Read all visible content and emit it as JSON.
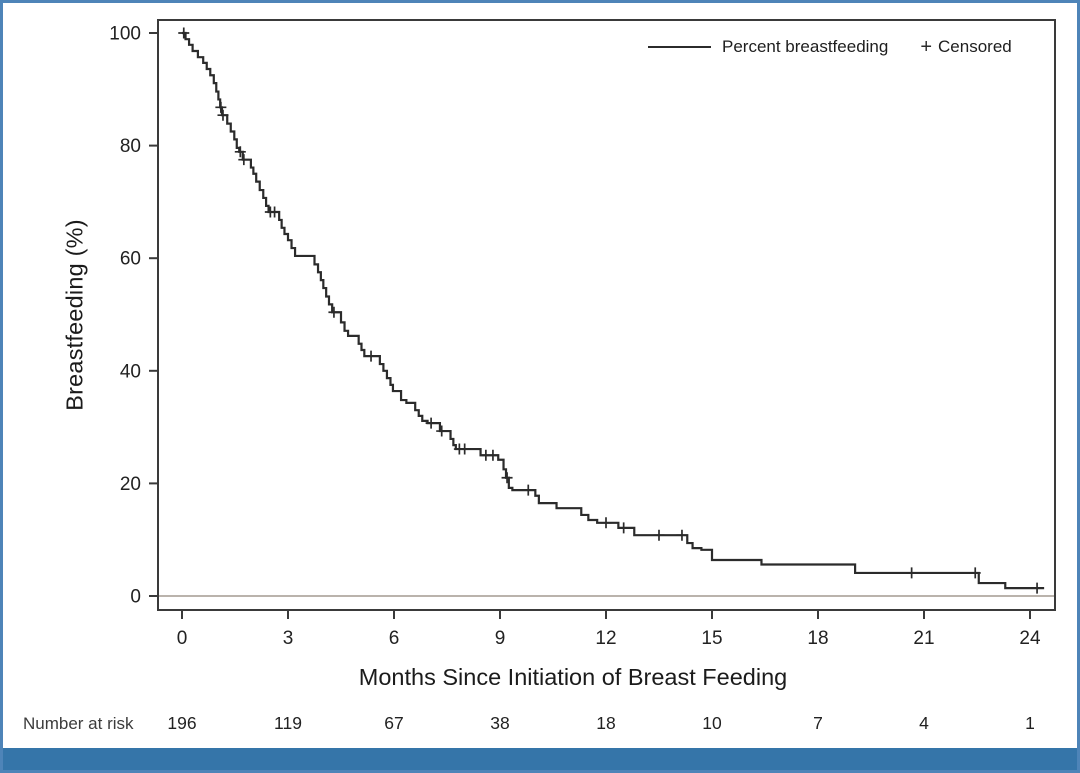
{
  "figure": {
    "kind": "kaplan-meier-survival-plot"
  },
  "colors": {
    "curve": "#2b2b2b",
    "frame": "#3a3a3a",
    "tick_text": "#222222",
    "zero_line": "#a49a90",
    "border_blue": "#4e84b8",
    "band_blue": "#3575a9"
  },
  "chart_data": {
    "type": "line",
    "subtype": "kaplan-meier-step",
    "title": "",
    "xlabel": "Months Since Initiation of Breast Feeding",
    "ylabel": "Breastfeeding (%)",
    "x_range": [
      0,
      24
    ],
    "y_range": [
      0,
      100
    ],
    "x_ticks": [
      0,
      3,
      6,
      9,
      12,
      15,
      18,
      21,
      24
    ],
    "y_ticks": [
      0,
      20,
      40,
      60,
      80,
      100
    ],
    "grid": false,
    "zero_reference_line": true,
    "legend_position": "top-right",
    "legend": {
      "series_label": "Percent breastfeeding",
      "censored_symbol": "+",
      "censored_label": "Censored"
    },
    "end_month": 24.4,
    "series": [
      {
        "name": "Percent breastfeeding",
        "steps": [
          [
            0,
            100
          ],
          [
            0.1,
            98.9
          ],
          [
            0.2,
            97.9
          ],
          [
            0.3,
            96.8
          ],
          [
            0.45,
            95.7
          ],
          [
            0.6,
            94.7
          ],
          [
            0.7,
            93.6
          ],
          [
            0.8,
            92.5
          ],
          [
            0.9,
            91.1
          ],
          [
            0.97,
            89.6
          ],
          [
            1.03,
            88.2
          ],
          [
            1.08,
            86.8
          ],
          [
            1.13,
            85.4
          ],
          [
            1.28,
            83.9
          ],
          [
            1.38,
            82.5
          ],
          [
            1.48,
            81.1
          ],
          [
            1.55,
            79.6
          ],
          [
            1.62,
            78.9
          ],
          [
            1.72,
            77.5
          ],
          [
            1.95,
            76.1
          ],
          [
            2.02,
            75
          ],
          [
            2.1,
            73.6
          ],
          [
            2.2,
            72.1
          ],
          [
            2.3,
            70.7
          ],
          [
            2.38,
            69.3
          ],
          [
            2.45,
            68.2
          ],
          [
            2.75,
            66.8
          ],
          [
            2.82,
            65.4
          ],
          [
            2.9,
            64.3
          ],
          [
            3,
            63.2
          ],
          [
            3.1,
            61.8
          ],
          [
            3.2,
            60.4
          ],
          [
            3.75,
            58.9
          ],
          [
            3.85,
            57.5
          ],
          [
            3.93,
            56.1
          ],
          [
            4,
            54.7
          ],
          [
            4.08,
            53.2
          ],
          [
            4.16,
            51.8
          ],
          [
            4.25,
            50.4
          ],
          [
            4.5,
            48.6
          ],
          [
            4.6,
            47.1
          ],
          [
            4.7,
            46.2
          ],
          [
            5,
            44.8
          ],
          [
            5.08,
            43.7
          ],
          [
            5.16,
            42.6
          ],
          [
            5.6,
            41.2
          ],
          [
            5.7,
            40
          ],
          [
            5.8,
            38.7
          ],
          [
            5.9,
            37.5
          ],
          [
            5.97,
            36.4
          ],
          [
            6.2,
            34.8
          ],
          [
            6.35,
            34.3
          ],
          [
            6.6,
            33
          ],
          [
            6.7,
            32
          ],
          [
            6.8,
            31.1
          ],
          [
            6.95,
            30.7
          ],
          [
            7.3,
            29.3
          ],
          [
            7.6,
            27.9
          ],
          [
            7.68,
            26.8
          ],
          [
            7.75,
            26.1
          ],
          [
            8.45,
            25
          ],
          [
            8.95,
            24.2
          ],
          [
            9.1,
            22.5
          ],
          [
            9.17,
            21
          ],
          [
            9.25,
            19.2
          ],
          [
            9.35,
            18.8
          ],
          [
            10,
            17.8
          ],
          [
            10.1,
            16.5
          ],
          [
            10.6,
            15.6
          ],
          [
            11.3,
            14.4
          ],
          [
            11.5,
            13.5
          ],
          [
            11.75,
            13
          ],
          [
            12.35,
            12.1
          ],
          [
            12.8,
            10.8
          ],
          [
            14.3,
            9.4
          ],
          [
            14.45,
            8.5
          ],
          [
            14.7,
            8.2
          ],
          [
            15,
            6.4
          ],
          [
            16.4,
            5.6
          ],
          [
            19.05,
            4.1
          ],
          [
            22.55,
            2.3
          ],
          [
            23.3,
            1.4
          ]
        ]
      }
    ],
    "censored": [
      [
        0.05,
        100
      ],
      [
        1.1,
        86.8
      ],
      [
        1.16,
        85.4
      ],
      [
        1.65,
        78.9
      ],
      [
        1.75,
        77.5
      ],
      [
        2.5,
        68.2
      ],
      [
        2.62,
        68.2
      ],
      [
        4.3,
        50.4
      ],
      [
        5.35,
        42.6
      ],
      [
        7.05,
        30.7
      ],
      [
        7.35,
        29.3
      ],
      [
        7.85,
        26.1
      ],
      [
        8,
        26.1
      ],
      [
        8.6,
        25
      ],
      [
        8.8,
        25
      ],
      [
        9.2,
        21
      ],
      [
        9.8,
        18.8
      ],
      [
        12,
        13
      ],
      [
        12.5,
        12.1
      ],
      [
        13.5,
        10.8
      ],
      [
        14.15,
        10.8
      ],
      [
        20.65,
        4.1
      ],
      [
        22.45,
        4.1
      ],
      [
        24.2,
        1.4
      ]
    ],
    "number_at_risk": {
      "label": "Number at risk",
      "months": [
        0,
        3,
        6,
        9,
        12,
        15,
        18,
        21,
        24
      ],
      "counts": [
        196,
        119,
        67,
        38,
        18,
        10,
        7,
        4,
        1
      ]
    }
  }
}
